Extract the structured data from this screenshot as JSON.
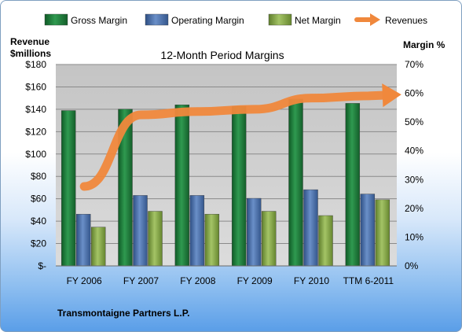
{
  "chart_data": {
    "type": "bar",
    "title": "12-Month Period Margins",
    "left_axis_label_line1": "Revenue",
    "left_axis_label_line2": "$millions",
    "right_axis_label": "Margin %",
    "left_ticks": [
      "$-",
      "$20",
      "$40",
      "$60",
      "$80",
      "$100",
      "$120",
      "$140",
      "$160",
      "$180"
    ],
    "right_ticks": [
      "0%",
      "10%",
      "20%",
      "30%",
      "40%",
      "50%",
      "60%",
      "70%"
    ],
    "ylim_left": [
      0,
      180
    ],
    "ylim_right": [
      0,
      70
    ],
    "categories": [
      "FY 2006",
      "FY 2007",
      "FY 2008",
      "FY 2009",
      "FY 2010",
      "TTM 6-2011"
    ],
    "series": [
      {
        "name": "Gross Margin",
        "axis": "right",
        "color": "#1e7a3a",
        "values": [
          54,
          54.5,
          56,
          55.5,
          58,
          56.5
        ]
      },
      {
        "name": "Operating Margin",
        "axis": "right",
        "color": "#4a6ea8",
        "values": [
          18,
          24.5,
          24.5,
          23.5,
          26.5,
          25
        ]
      },
      {
        "name": "Net Margin",
        "axis": "right",
        "color": "#86a845",
        "values": [
          13.5,
          19,
          18,
          19,
          17.5,
          23
        ]
      },
      {
        "name": "Revenues",
        "axis": "left",
        "type": "line",
        "color": "#f0883c",
        "values": [
          71,
          135,
          138,
          140,
          150,
          152
        ]
      }
    ],
    "grid": true,
    "legend": "top",
    "company": "Transmontaigne Partners L.P.",
    "plot_background": "#c8c8c8"
  }
}
